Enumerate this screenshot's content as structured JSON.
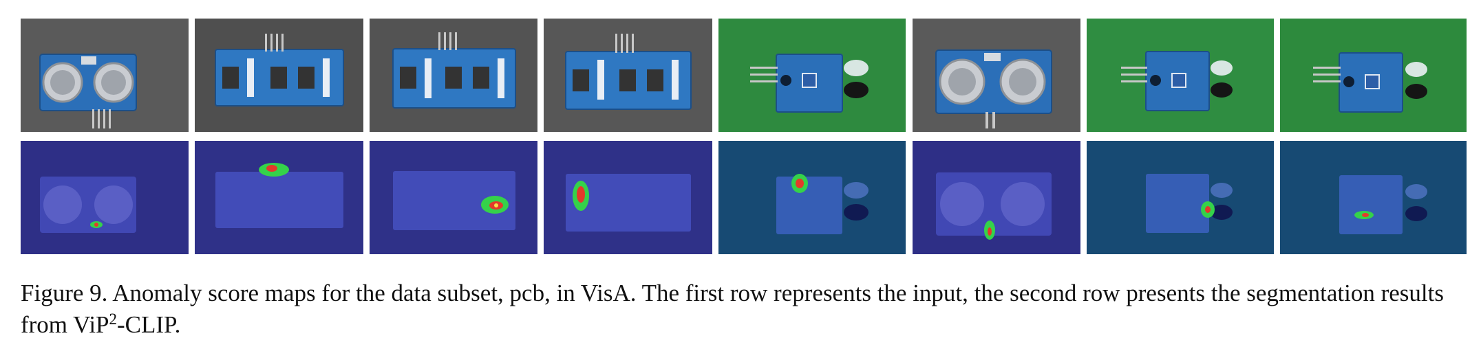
{
  "figure": {
    "caption_main": "Figure 9. Anomaly score maps for the data subset, pcb, in VisA. The first row represents the input, the second row presents the segmentation results from ViP",
    "caption_sup": "2",
    "caption_tail": "-CLIP."
  },
  "colors": {
    "gray_bg": "#565656",
    "green_bg": "#2e8a3f",
    "map_bg_a": "#2e2f86",
    "map_bg_b": "#174a73",
    "pcb_blue": "#2b6fb8",
    "anomaly_green": "#35d24a",
    "anomaly_red": "#e33a2a"
  },
  "rows": [
    {
      "row": "input",
      "tiles": [
        {
          "board": "ultrasonic",
          "bg": "gray",
          "view": "front"
        },
        {
          "board": "amp",
          "bg": "gray",
          "view": "front"
        },
        {
          "board": "amp",
          "bg": "gray",
          "view": "front"
        },
        {
          "board": "amp",
          "bg": "gray",
          "view": "front"
        },
        {
          "board": "ir",
          "bg": "green",
          "view": "front"
        },
        {
          "board": "ultrasonic",
          "bg": "gray",
          "view": "front"
        },
        {
          "board": "ir",
          "bg": "green",
          "view": "front"
        },
        {
          "board": "ir",
          "bg": "green",
          "view": "front"
        }
      ]
    },
    {
      "row": "segmentation",
      "tiles": [
        {
          "board": "ultrasonic",
          "bg": "map_a",
          "anomaly": "bottom-center"
        },
        {
          "board": "amp",
          "bg": "map_a",
          "anomaly": "top-connector"
        },
        {
          "board": "amp",
          "bg": "map_a",
          "anomaly": "bottom-right"
        },
        {
          "board": "amp",
          "bg": "map_a",
          "anomaly": "left-chip"
        },
        {
          "board": "ir",
          "bg": "map_b",
          "anomaly": "upper-left"
        },
        {
          "board": "ultrasonic",
          "bg": "map_a",
          "anomaly": "below-pins"
        },
        {
          "board": "ir",
          "bg": "map_b",
          "anomaly": "right-lower"
        },
        {
          "board": "ir",
          "bg": "map_b",
          "anomaly": "center-lower"
        }
      ]
    }
  ]
}
